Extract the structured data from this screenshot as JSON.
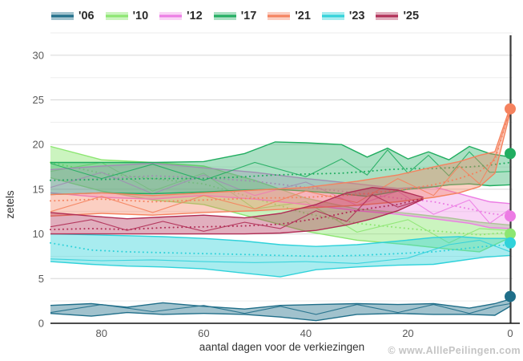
{
  "watermark": "© www.AlllePeilingen.com",
  "axes": {
    "y_title": "zetels",
    "x_title": "aantal dagen voor de verkiezingen",
    "y_ticks": [
      0,
      5,
      10,
      15,
      20,
      25,
      30
    ],
    "x_ticks": [
      80,
      60,
      40,
      20,
      0
    ]
  },
  "chart_data": {
    "type": "area",
    "title": "",
    "xlabel": "aantal dagen voor de verkiezingen",
    "ylabel": "zetels",
    "x_axis_reversed": true,
    "xlim": [
      90,
      0
    ],
    "ylim": [
      0,
      32.5
    ],
    "grid": "horizontal, major every 5 seats, minor every 2.5",
    "legend_position": "top",
    "note": "bands = min/max poll range per election year, dotted line = polling average, dot at x=0 = election result",
    "series": [
      {
        "name": "'06",
        "color": "#1f6e89",
        "fill_opacity": 0.42,
        "result": 3,
        "band": [
          [
            90,
            1.1,
            2.0,
            null
          ],
          [
            82,
            0.8,
            2.2,
            null
          ],
          [
            75,
            1.2,
            1.8,
            null
          ],
          [
            68,
            1.0,
            2.3,
            null
          ],
          [
            60,
            1.1,
            1.9,
            null
          ],
          [
            52,
            1.0,
            1.6,
            null
          ],
          [
            45,
            0.7,
            2.0,
            null
          ],
          [
            38,
            0.3,
            2.1,
            null
          ],
          [
            30,
            1.0,
            2.2,
            null
          ],
          [
            22,
            1.1,
            2.1,
            null
          ],
          [
            15,
            1.0,
            2.2,
            null
          ],
          [
            8,
            1.0,
            1.7,
            null
          ],
          [
            3,
            0.9,
            2.2,
            null
          ],
          [
            0,
            1.9,
            2.7,
            null
          ]
        ],
        "inner": [
          [
            90,
            1.2
          ],
          [
            80,
            2.1
          ],
          [
            70,
            1.3
          ],
          [
            60,
            2.0
          ],
          [
            52,
            1.1
          ],
          [
            45,
            1.9
          ],
          [
            38,
            1.0
          ],
          [
            30,
            2.1
          ],
          [
            22,
            1.2
          ],
          [
            15,
            2.1
          ],
          [
            8,
            1.1
          ],
          [
            3,
            1.9
          ],
          [
            0,
            2.2
          ]
        ]
      },
      {
        "name": "'10",
        "color": "#8ce671",
        "fill_opacity": 0.45,
        "result": 10,
        "band": [
          [
            90,
            16.3,
            19.8,
            18.0
          ],
          [
            80,
            14.8,
            18.3,
            16.8
          ],
          [
            70,
            13.8,
            18.0,
            16.2
          ],
          [
            60,
            13.3,
            17.6,
            15.6
          ],
          [
            50,
            11.8,
            16.0,
            14.0
          ],
          [
            40,
            10.3,
            14.0,
            12.3
          ],
          [
            30,
            9.3,
            12.8,
            11.2
          ],
          [
            20,
            8.8,
            12.3,
            10.6
          ],
          [
            12,
            8.3,
            11.8,
            10.2
          ],
          [
            6,
            8.0,
            11.3,
            9.9
          ],
          [
            0,
            9.6,
            11.0,
            10.2
          ]
        ],
        "inner": [
          [
            90,
            17.0
          ],
          [
            80,
            18.0
          ],
          [
            70,
            14.8
          ],
          [
            60,
            16.8
          ],
          [
            50,
            12.8
          ],
          [
            40,
            13.6
          ],
          [
            30,
            10.2
          ],
          [
            20,
            11.6
          ],
          [
            12,
            9.0
          ],
          [
            6,
            10.6
          ],
          [
            0,
            10.4
          ]
        ]
      },
      {
        "name": "'12",
        "color": "#ec7ce4",
        "fill_opacity": 0.32,
        "result": 12,
        "band": [
          [
            90,
            14.6,
            17.2,
            16.0
          ],
          [
            80,
            14.1,
            17.6,
            16.2
          ],
          [
            70,
            13.9,
            17.9,
            16.5
          ],
          [
            60,
            14.3,
            17.4,
            16.3
          ],
          [
            50,
            13.9,
            16.9,
            15.9
          ],
          [
            40,
            13.3,
            16.2,
            15.2
          ],
          [
            30,
            12.6,
            15.6,
            14.6
          ],
          [
            22,
            12.2,
            15.1,
            14.0
          ],
          [
            15,
            11.7,
            15.3,
            13.6
          ],
          [
            8,
            11.2,
            14.2,
            12.8
          ],
          [
            4,
            10.7,
            13.6,
            12.3
          ],
          [
            0,
            10.6,
            13.4,
            12.0
          ]
        ],
        "inner": [
          [
            90,
            15.2
          ],
          [
            80,
            16.9
          ],
          [
            70,
            14.5
          ],
          [
            60,
            16.6
          ],
          [
            50,
            14.3
          ],
          [
            40,
            15.8
          ],
          [
            30,
            13.2
          ],
          [
            22,
            14.8
          ],
          [
            15,
            12.2
          ],
          [
            8,
            13.8
          ],
          [
            4,
            11.2
          ],
          [
            0,
            12.8
          ]
        ]
      },
      {
        "name": "'17",
        "color": "#21ad60",
        "fill_opacity": 0.38,
        "result": 19,
        "band": [
          [
            90,
            14.4,
            18.0,
            16.0
          ],
          [
            80,
            14.6,
            18.0,
            16.1
          ],
          [
            70,
            14.5,
            18.0,
            16.2
          ],
          [
            60,
            14.7,
            18.1,
            16.2
          ],
          [
            52,
            14.9,
            19.0,
            16.4
          ],
          [
            46,
            15.0,
            20.3,
            16.6
          ],
          [
            40,
            14.8,
            20.2,
            16.7
          ],
          [
            33,
            14.5,
            20.0,
            16.8
          ],
          [
            28,
            14.2,
            18.6,
            17.0
          ],
          [
            24,
            14.6,
            19.6,
            17.2
          ],
          [
            20,
            15.0,
            18.4,
            17.3
          ],
          [
            16,
            15.2,
            19.2,
            17.3
          ],
          [
            12,
            15.5,
            18.3,
            17.4
          ],
          [
            8,
            15.6,
            19.8,
            17.5
          ],
          [
            4,
            15.4,
            19.0,
            17.7
          ],
          [
            0,
            15.5,
            18.6,
            18.0
          ]
        ],
        "inner": [
          [
            90,
            17.9
          ],
          [
            80,
            16.2
          ],
          [
            70,
            17.8
          ],
          [
            60,
            16.0
          ],
          [
            50,
            18.0
          ],
          [
            40,
            16.4
          ],
          [
            33,
            18.4
          ],
          [
            28,
            16.6
          ],
          [
            24,
            19.4
          ],
          [
            20,
            16.8
          ],
          [
            16,
            18.8
          ],
          [
            12,
            16.5
          ],
          [
            8,
            19.2
          ],
          [
            4,
            16.9
          ],
          [
            0,
            17.0
          ]
        ]
      },
      {
        "name": "'21",
        "color": "#f5825e",
        "fill_opacity": 0.38,
        "result": 24,
        "band": [
          [
            90,
            12.0,
            14.4,
            13.7
          ],
          [
            80,
            12.3,
            14.6,
            13.9
          ],
          [
            70,
            12.1,
            14.3,
            13.6
          ],
          [
            60,
            12.4,
            14.6,
            13.8
          ],
          [
            50,
            12.6,
            14.9,
            14.0
          ],
          [
            40,
            12.9,
            15.2,
            14.1
          ],
          [
            30,
            13.2,
            15.9,
            14.4
          ],
          [
            22,
            13.6,
            16.6,
            14.9
          ],
          [
            15,
            14.1,
            17.5,
            15.5
          ],
          [
            10,
            14.6,
            18.1,
            16.2
          ],
          [
            6,
            15.3,
            18.8,
            17.0
          ],
          [
            3,
            16.8,
            19.2,
            18.3
          ],
          [
            0,
            23.6,
            24.2,
            24.0
          ]
        ],
        "inner": [
          [
            90,
            12.5
          ],
          [
            80,
            14.2
          ],
          [
            70,
            12.4
          ],
          [
            60,
            14.3
          ],
          [
            50,
            12.8
          ],
          [
            40,
            14.8
          ],
          [
            30,
            13.5
          ],
          [
            22,
            16.2
          ],
          [
            15,
            14.3
          ],
          [
            10,
            17.6
          ],
          [
            6,
            15.6
          ],
          [
            3,
            18.6
          ],
          [
            0,
            23.8
          ]
        ]
      },
      {
        "name": "'23",
        "color": "#30d2da",
        "fill_opacity": 0.42,
        "result": 9,
        "band": [
          [
            90,
            6.9,
            10.0,
            9.0
          ],
          [
            82,
            6.6,
            9.9,
            8.2
          ],
          [
            75,
            6.4,
            9.8,
            8.0
          ],
          [
            68,
            6.3,
            9.7,
            7.9
          ],
          [
            60,
            6.1,
            9.5,
            7.8
          ],
          [
            52,
            5.6,
            9.2,
            7.7
          ],
          [
            45,
            5.2,
            8.8,
            7.6
          ],
          [
            38,
            6.0,
            8.6,
            7.5
          ],
          [
            30,
            6.3,
            8.8,
            7.6
          ],
          [
            22,
            6.5,
            9.2,
            7.8
          ],
          [
            15,
            6.6,
            9.6,
            8.0
          ],
          [
            10,
            7.0,
            9.7,
            8.3
          ],
          [
            5,
            7.4,
            9.5,
            8.6
          ],
          [
            0,
            7.6,
            9.5,
            8.8
          ]
        ],
        "inner": [
          [
            90,
            7.2
          ],
          [
            80,
            7.0
          ],
          [
            70,
            7.1
          ],
          [
            60,
            6.9
          ],
          [
            50,
            6.8
          ],
          [
            40,
            6.9
          ],
          [
            30,
            6.7
          ],
          [
            20,
            7.3
          ],
          [
            12,
            8.8
          ],
          [
            6,
            9.3
          ],
          [
            0,
            8.0
          ]
        ]
      },
      {
        "name": "'25",
        "color": "#b02d55",
        "fill_opacity": 0.38,
        "result": null,
        "band": [
          [
            90,
            10.0,
            12.4,
            10.5
          ],
          [
            82,
            10.0,
            12.0,
            10.6
          ],
          [
            75,
            10.0,
            11.7,
            10.5
          ],
          [
            68,
            10.0,
            11.9,
            10.7
          ],
          [
            60,
            10.0,
            12.1,
            10.8
          ],
          [
            52,
            10.0,
            11.8,
            10.9
          ],
          [
            45,
            10.1,
            12.3,
            11.1
          ],
          [
            38,
            10.4,
            13.3,
            11.7
          ],
          [
            32,
            11.0,
            14.6,
            12.4
          ],
          [
            27,
            11.7,
            15.2,
            12.9
          ],
          [
            22,
            12.6,
            14.9,
            13.3
          ],
          [
            17,
            13.9,
            14.1,
            14.0
          ]
        ],
        "inner": [
          [
            90,
            10.8
          ],
          [
            82,
            11.6
          ],
          [
            75,
            10.4
          ],
          [
            68,
            11.4
          ],
          [
            60,
            10.3
          ],
          [
            52,
            11.3
          ],
          [
            45,
            10.6
          ],
          [
            38,
            12.6
          ],
          [
            32,
            11.4
          ],
          [
            27,
            14.4
          ],
          [
            22,
            13.0
          ],
          [
            17,
            13.9
          ]
        ]
      }
    ]
  }
}
